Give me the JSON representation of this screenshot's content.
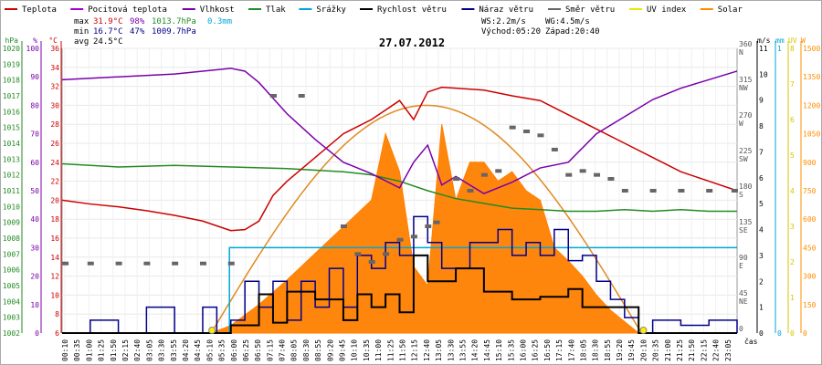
{
  "title": "27.07.2012",
  "legend": [
    {
      "name": "Teplota",
      "color": "#cc0000"
    },
    {
      "name": "Pocitová teplota",
      "color": "#aa00cc"
    },
    {
      "name": "Vlhkost",
      "color": "#7a00aa"
    },
    {
      "name": "Tlak",
      "color": "#228b22"
    },
    {
      "name": "Srážky",
      "color": "#00a6d6"
    },
    {
      "name": "Rychlost větru",
      "color": "#000000"
    },
    {
      "name": "Náraz větru",
      "color": "#00008b"
    },
    {
      "name": "Směr větru",
      "color": "#666666"
    },
    {
      "name": "UV index",
      "color": "#e6e600"
    },
    {
      "name": "Solar",
      "color": "#ff8c00"
    }
  ],
  "stats": {
    "max_label": "max",
    "max_temp": "31.9°C",
    "max_hum": "98%",
    "max_press": "1013.7hPa",
    "rain": "0.3mm",
    "min_label": "min",
    "min_temp": "16.7°C",
    "min_hum": "47%",
    "min_press": "1009.7hPa",
    "avg_label": "avg",
    "avg_temp": "24.5°C",
    "ws": "WS:2.2m/s",
    "wg": "WG:4.5m/s",
    "sunrise": "Východ:05:20",
    "sunset": "Západ:20:40"
  },
  "axis_units": {
    "press": "hPa",
    "hum": "%",
    "temp": "°C",
    "wind": "m/s",
    "rain": "mm",
    "uv": "UV",
    "solar": "W",
    "time": "čas"
  },
  "chart_data": {
    "type": "line",
    "title": "27.07.2012",
    "x_ticks": [
      "00:10",
      "00:35",
      "01:00",
      "01:25",
      "01:50",
      "02:15",
      "02:40",
      "03:05",
      "03:30",
      "03:55",
      "04:20",
      "04:45",
      "05:10",
      "05:35",
      "06:00",
      "06:25",
      "06:50",
      "07:15",
      "07:40",
      "08:05",
      "08:30",
      "08:55",
      "09:20",
      "09:45",
      "10:10",
      "10:35",
      "11:00",
      "11:25",
      "11:50",
      "12:15",
      "12:40",
      "13:05",
      "13:30",
      "13:55",
      "14:20",
      "14:45",
      "15:10",
      "15:35",
      "16:00",
      "16:25",
      "16:50",
      "17:15",
      "17:40",
      "18:05",
      "18:30",
      "18:55",
      "19:20",
      "19:45",
      "20:10",
      "20:35",
      "21:00",
      "21:25",
      "21:50",
      "22:15",
      "22:40",
      "23:05"
    ],
    "axes": {
      "press": {
        "ticks": [
          1002,
          1003,
          1004,
          1005,
          1006,
          1007,
          1008,
          1009,
          1010,
          1011,
          1012,
          1013,
          1014,
          1015,
          1016,
          1017,
          1018,
          1019,
          1020
        ],
        "ylim": [
          1002,
          1020
        ]
      },
      "hum": {
        "ticks": [
          0,
          10,
          20,
          30,
          40,
          50,
          60,
          70,
          80,
          90,
          100
        ],
        "ylim": [
          0,
          100
        ]
      },
      "temp": {
        "ticks": [
          6,
          8,
          10,
          12,
          14,
          16,
          18,
          20,
          22,
          24,
          26,
          28,
          30,
          32,
          34,
          36
        ],
        "ylim": [
          6,
          36
        ]
      },
      "dir": {
        "ticks": [
          "0",
          "45\nNE",
          "90\nE",
          "135\nSE",
          "180\nS",
          "225\nSW",
          "270\nW",
          "315\nNW",
          "360\nN"
        ],
        "ylim": [
          0,
          360
        ]
      },
      "wind": {
        "ticks": [
          0,
          1,
          2,
          3,
          4,
          5,
          6,
          7,
          8,
          9,
          10,
          11
        ],
        "ylim": [
          0,
          11
        ]
      },
      "rain": {
        "ticks": [
          0,
          1
        ],
        "ylim": [
          0,
          1
        ]
      },
      "uv": {
        "ticks": [
          0,
          1,
          2,
          3,
          4,
          5,
          6,
          7,
          8
        ],
        "ylim": [
          0,
          8
        ]
      },
      "solar": {
        "ticks": [
          0,
          150,
          300,
          450,
          600,
          750,
          900,
          1050,
          1200,
          1350,
          1500
        ],
        "ylim": [
          0,
          1500
        ]
      }
    },
    "series": [
      {
        "name": "Teplota",
        "axis": "temp",
        "x": [
          0,
          1,
          2,
          3,
          4,
          5,
          5.5,
          6,
          6.5,
          7,
          7.5,
          8,
          9,
          10,
          11,
          12,
          12.5,
          13,
          13.5,
          14,
          15,
          16,
          17,
          18,
          19,
          20,
          21,
          22,
          23,
          24
        ],
        "values": [
          20,
          19.6,
          19.3,
          18.9,
          18.4,
          17.8,
          17.3,
          16.8,
          16.9,
          17.8,
          20.5,
          22,
          24.5,
          27,
          28.5,
          30.5,
          28.5,
          31.4,
          31.9,
          31.8,
          31.6,
          31,
          30.5,
          29,
          27.5,
          26,
          24.5,
          23,
          22,
          21
        ]
      },
      {
        "name": "Vlhkost",
        "axis": "hum",
        "x": [
          0,
          2,
          4,
          6,
          6.5,
          7,
          8,
          9,
          10,
          11,
          12,
          12.5,
          13,
          13.5,
          14,
          15,
          16,
          17,
          18,
          19,
          20,
          21,
          22,
          23,
          24
        ],
        "values": [
          89,
          90,
          91,
          93,
          92,
          88,
          77,
          68,
          60,
          56,
          51,
          60,
          66,
          52,
          55,
          49,
          53,
          58,
          60,
          70,
          76,
          82,
          86,
          89,
          92
        ]
      },
      {
        "name": "Tlak",
        "axis": "press",
        "x": [
          0,
          2,
          4,
          6,
          8,
          10,
          11,
          12,
          13,
          14,
          15,
          16,
          17,
          18,
          19,
          20,
          21,
          22,
          23,
          24
        ],
        "values": [
          1012.7,
          1012.5,
          1012.6,
          1012.5,
          1012.4,
          1012.2,
          1012.0,
          1011.6,
          1011.0,
          1010.5,
          1010.2,
          1009.9,
          1009.8,
          1009.7,
          1009.7,
          1009.8,
          1009.7,
          1009.8,
          1009.7,
          1009.7
        ]
      },
      {
        "name": "Srážky",
        "axis": "rain",
        "x": [
          0,
          5.9,
          5.95,
          24
        ],
        "values": [
          0,
          0,
          0.3,
          0.3
        ]
      },
      {
        "name": "Rychlost větru",
        "axis": "wind",
        "x": [
          0,
          2,
          4,
          5.5,
          6,
          7,
          7.5,
          8,
          9,
          10,
          10.5,
          11,
          11.5,
          12,
          12.5,
          13,
          14,
          15,
          16,
          17,
          18,
          18.5,
          19,
          20,
          20.5,
          21,
          22,
          23,
          24
        ],
        "values": [
          0,
          0,
          0,
          0,
          0.3,
          1.5,
          0.4,
          1.6,
          1.3,
          0.5,
          1.5,
          1,
          1.5,
          0.8,
          3,
          2,
          2.5,
          1.6,
          1.3,
          1.4,
          1.7,
          1,
          1,
          1,
          0,
          0,
          0,
          0,
          0
        ]
      },
      {
        "name": "Náraz větru",
        "axis": "wind",
        "x": [
          0,
          1,
          2,
          3,
          4,
          5,
          5.5,
          6,
          6.5,
          7,
          7.5,
          8,
          8.5,
          9,
          9.5,
          10,
          10.5,
          11,
          11.5,
          12,
          12.5,
          13,
          13.5,
          14,
          14.5,
          15,
          15.5,
          16,
          16.5,
          17,
          17.5,
          18,
          18.5,
          19,
          19.5,
          20,
          20.5,
          21,
          22,
          23,
          24
        ],
        "values": [
          0,
          0.5,
          0,
          1,
          0,
          1,
          0,
          0.5,
          2,
          1,
          2,
          0.5,
          2,
          1,
          2.5,
          1,
          3,
          2.5,
          3.5,
          3,
          4.5,
          3.5,
          2.5,
          2.5,
          3.5,
          3.5,
          4,
          3,
          3.5,
          3,
          4,
          2.8,
          3,
          2,
          1.3,
          0.6,
          0,
          0.5,
          0.3,
          0.5,
          0
        ]
      },
      {
        "name": "Solar",
        "axis": "solar",
        "x": [
          5.3,
          6,
          7,
          8,
          9,
          10,
          11,
          11.5,
          12,
          12.5,
          13,
          13.5,
          14,
          14.5,
          15,
          15.5,
          16,
          16.5,
          17,
          17.5,
          18,
          18.5,
          19,
          19.5,
          20,
          20.5
        ],
        "values": [
          0,
          40,
          150,
          280,
          420,
          560,
          700,
          1050,
          850,
          350,
          250,
          1100,
          700,
          900,
          900,
          800,
          850,
          750,
          700,
          450,
          380,
          300,
          200,
          120,
          60,
          0
        ]
      },
      {
        "name": "Směr větru",
        "axis": "dir",
        "x": [
          0.1,
          1,
          2,
          3,
          4,
          5,
          6,
          7.5,
          8.5,
          10,
          10.5,
          11,
          11.5,
          12,
          12.5,
          13,
          13.3,
          14,
          14.5,
          15,
          15.5,
          16,
          16.5,
          17,
          17.5,
          18,
          18.5,
          19,
          19.5,
          20,
          21,
          22,
          23,
          23.9
        ],
        "values": [
          88,
          88,
          88,
          88,
          88,
          88,
          88,
          300,
          300,
          135,
          100,
          90,
          100,
          118,
          122,
          135,
          140,
          195,
          180,
          200,
          205,
          260,
          255,
          250,
          232,
          200,
          205,
          200,
          195,
          180,
          180,
          180,
          180,
          180
        ]
      }
    ]
  }
}
